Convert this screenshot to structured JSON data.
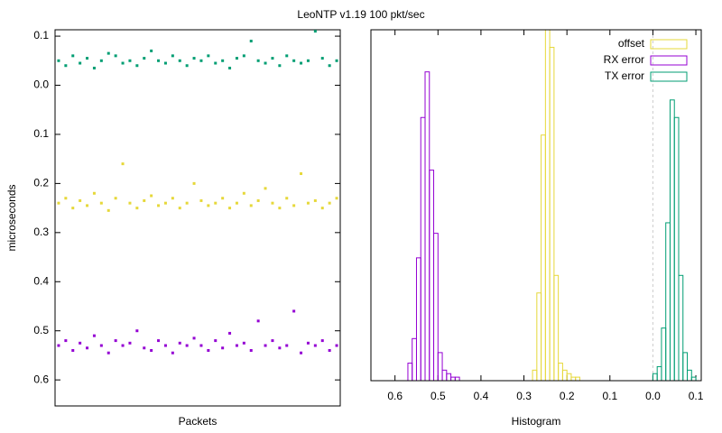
{
  "title": "LeoNTP v1.19 100 pkt/sec",
  "chart_data": [
    {
      "type": "scatter",
      "xlabel": "Packets",
      "ylabel": "microseconds",
      "x": [
        0,
        1,
        2,
        3,
        4,
        5,
        6,
        7,
        8,
        9,
        10,
        11,
        12,
        13,
        14,
        15,
        16,
        17,
        18,
        19,
        20,
        21,
        22,
        23,
        24,
        25,
        26,
        27,
        28,
        29,
        30,
        31,
        32,
        33,
        34,
        35,
        36,
        37,
        38,
        39
      ],
      "xlim": [
        -0.5,
        39.5
      ],
      "ylim": [
        -0.113,
        0.653
      ],
      "y_inverted": true,
      "yticks": [
        {
          "value": -0.1,
          "label": "0.1"
        },
        {
          "value": 0,
          "label": "0.0"
        },
        0.1,
        0.2,
        0.3,
        0.4,
        0.5,
        0.6
      ],
      "series": [
        {
          "name": "offset",
          "color": "#e6d83a",
          "values": [
            0.24,
            0.23,
            0.25,
            0.235,
            0.245,
            0.22,
            0.24,
            0.255,
            0.23,
            0.16,
            0.24,
            0.25,
            0.235,
            0.225,
            0.245,
            0.24,
            0.23,
            0.25,
            0.24,
            0.2,
            0.235,
            0.245,
            0.24,
            0.23,
            0.25,
            0.24,
            0.22,
            0.245,
            0.235,
            0.21,
            0.24,
            0.25,
            0.23,
            0.245,
            0.18,
            0.24,
            0.235,
            0.25,
            0.24,
            0.23
          ]
        },
        {
          "name": "RX error",
          "color": "#9400d3",
          "values": [
            0.53,
            0.52,
            0.54,
            0.525,
            0.535,
            0.51,
            0.53,
            0.545,
            0.52,
            0.53,
            0.525,
            0.5,
            0.535,
            0.54,
            0.52,
            0.53,
            0.545,
            0.525,
            0.53,
            0.515,
            0.53,
            0.54,
            0.52,
            0.535,
            0.505,
            0.53,
            0.525,
            0.54,
            0.48,
            0.53,
            0.52,
            0.535,
            0.53,
            0.46,
            0.545,
            0.525,
            0.53,
            0.52,
            0.54,
            0.53
          ]
        },
        {
          "name": "TX error",
          "color": "#009e73",
          "values": [
            -0.05,
            -0.04,
            -0.06,
            -0.045,
            -0.055,
            -0.035,
            -0.05,
            -0.065,
            -0.06,
            -0.045,
            -0.05,
            -0.04,
            -0.055,
            -0.07,
            -0.05,
            -0.045,
            -0.06,
            -0.05,
            -0.04,
            -0.055,
            -0.05,
            -0.06,
            -0.045,
            -0.05,
            -0.035,
            -0.055,
            -0.06,
            -0.09,
            -0.05,
            -0.045,
            -0.055,
            -0.04,
            -0.06,
            -0.05,
            -0.045,
            -0.05,
            -0.11,
            -0.055,
            -0.04,
            -0.05
          ]
        }
      ]
    },
    {
      "type": "histogram",
      "xlabel": "Histogram",
      "legend": "top right",
      "zero_line": true,
      "xlim": [
        0.656,
        -0.1125
      ],
      "ylim": [
        0,
        100
      ],
      "xticks": [
        0.6,
        0.5,
        0.4,
        0.3,
        0.2,
        0.1,
        {
          "value": 0,
          "label": "0.0"
        },
        {
          "value": -0.1,
          "label": "0.1"
        }
      ],
      "series": [
        {
          "name": "offset",
          "color": "#e6d83a",
          "bins": [
            0.17,
            0.18,
            0.19,
            0.2,
            0.21,
            0.22,
            0.23,
            0.24,
            0.25,
            0.26,
            0.27,
            0.28
          ],
          "values": [
            1,
            1,
            2,
            3,
            5,
            30,
            95,
            105,
            70,
            25,
            3
          ]
        },
        {
          "name": "RX error",
          "color": "#9400d3",
          "bins": [
            0.45,
            0.46,
            0.47,
            0.48,
            0.49,
            0.5,
            0.51,
            0.52,
            0.53,
            0.54,
            0.55,
            0.56,
            0.57
          ],
          "values": [
            1,
            1,
            2,
            3,
            8,
            42,
            60,
            88,
            75,
            35,
            12,
            5
          ]
        },
        {
          "name": "TX error",
          "color": "#009e73",
          "bins": [
            -0.1,
            -0.09,
            -0.08,
            -0.07,
            -0.06,
            -0.05,
            -0.04,
            -0.03,
            -0.02,
            -0.01,
            0
          ],
          "values": [
            1,
            3,
            8,
            30,
            75,
            80,
            45,
            15,
            4,
            2
          ]
        }
      ]
    }
  ]
}
